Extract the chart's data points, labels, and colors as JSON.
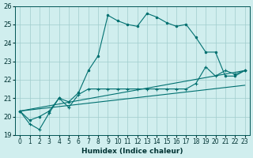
{
  "xlabel": "Humidex (Indice chaleur)",
  "ylabel": "",
  "bg_color": "#d0eeee",
  "grid_color": "#a0cccc",
  "line_color": "#007070",
  "xlim": [
    -0.5,
    23.5
  ],
  "ylim": [
    19,
    26
  ],
  "yticks": [
    19,
    20,
    21,
    22,
    23,
    24,
    25,
    26
  ],
  "xtick_labels": [
    "0",
    "1",
    "2",
    "3",
    "4",
    "5",
    "6",
    "7",
    "8",
    "9",
    "10",
    "11",
    "12",
    "13",
    "14",
    "15",
    "16",
    "17",
    "18",
    "19",
    "20",
    "21",
    "22",
    "23"
  ],
  "line1_x": [
    0,
    1,
    2,
    3,
    4,
    5,
    6,
    7,
    8,
    9,
    10,
    11,
    12,
    13,
    14,
    15,
    16,
    17,
    18,
    19,
    20,
    21,
    22,
    23
  ],
  "line1_y": [
    20.3,
    19.8,
    20.0,
    20.3,
    21.0,
    20.8,
    21.3,
    22.5,
    23.3,
    25.5,
    25.2,
    25.0,
    24.9,
    25.6,
    25.4,
    25.1,
    24.9,
    25.0,
    24.3,
    23.5,
    23.5,
    22.2,
    22.2,
    22.5
  ],
  "line2_x": [
    0,
    1,
    2,
    3,
    4,
    5,
    6,
    7,
    8,
    9,
    10,
    11,
    12,
    13,
    14,
    15,
    16,
    17,
    18,
    19,
    20,
    21,
    22,
    23
  ],
  "line2_y": [
    20.3,
    19.6,
    19.3,
    20.2,
    21.0,
    20.5,
    21.2,
    21.5,
    21.5,
    21.5,
    21.5,
    21.5,
    21.5,
    21.5,
    21.5,
    21.5,
    21.5,
    21.5,
    21.8,
    22.7,
    22.2,
    22.5,
    22.3,
    22.5
  ],
  "line3_x": [
    0,
    23
  ],
  "line3_y": [
    20.3,
    21.7
  ],
  "line4_x": [
    0,
    23
  ],
  "line4_y": [
    20.3,
    22.5
  ]
}
